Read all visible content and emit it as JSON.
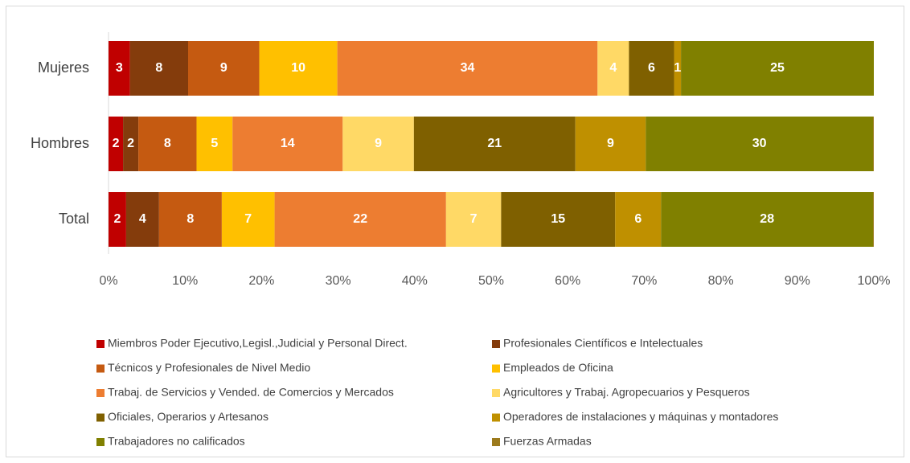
{
  "chart_data": {
    "type": "stacked_bar_horizontal_percent",
    "categories": [
      "Mujeres",
      "Hombres",
      "Total"
    ],
    "xlim": [
      0,
      100
    ],
    "xticks": [
      {
        "value": 0,
        "label": "0%"
      },
      {
        "value": 10,
        "label": "10%"
      },
      {
        "value": 20,
        "label": "20%"
      },
      {
        "value": 30,
        "label": "30%"
      },
      {
        "value": 40,
        "label": "40%"
      },
      {
        "value": 50,
        "label": "50%"
      },
      {
        "value": 60,
        "label": "60%"
      },
      {
        "value": 70,
        "label": "70%"
      },
      {
        "value": 80,
        "label": "80%"
      },
      {
        "value": 90,
        "label": "90%"
      },
      {
        "value": 100,
        "label": "100%"
      }
    ],
    "series": [
      {
        "name": "Miembros Poder Ejecutivo,Legisl.,Judicial y Personal Direct.",
        "color": "#c00000",
        "values": [
          2.8,
          1.9,
          2.3
        ],
        "value_labels": [
          "3",
          "2",
          "2"
        ]
      },
      {
        "name": "Profesionales Científicos e Intelectuales",
        "color": "#843c0c",
        "values": [
          7.6,
          2.0,
          4.3
        ],
        "value_labels": [
          "8",
          "2",
          "4"
        ]
      },
      {
        "name": "Técnicos y Profesionales de Nivel Medio",
        "color": "#c55a11",
        "values": [
          9.3,
          7.6,
          8.2
        ],
        "value_labels": [
          "9",
          "8",
          "8"
        ]
      },
      {
        "name": "Empleados de Oficina",
        "color": "#ffc000",
        "values": [
          10.2,
          4.7,
          6.9
        ],
        "value_labels": [
          "10",
          "5",
          "7"
        ]
      },
      {
        "name": "Trabaj. de Servicios y Vended. de Comercios y Mercados",
        "color": "#ed7d31",
        "values": [
          34.0,
          14.4,
          22.4
        ],
        "value_labels": [
          "34",
          "14",
          "22"
        ]
      },
      {
        "name": "Agricultores y Trabaj. Agropecuarios y Pesqueros",
        "color": "#ffd966",
        "values": [
          4.1,
          9.3,
          7.2
        ],
        "value_labels": [
          "4",
          "9",
          "7"
        ]
      },
      {
        "name": "Oficiales, Operarios y Artesanos",
        "color": "#7f6000",
        "values": [
          5.9,
          21.1,
          14.9
        ],
        "value_labels": [
          "6",
          "21",
          "15"
        ]
      },
      {
        "name": "Operadores de instalaciones y máquinas y montadores",
        "color": "#bf9000",
        "values": [
          0.9,
          9.2,
          6.0
        ],
        "value_labels": [
          "1",
          "9",
          "6"
        ]
      },
      {
        "name": "Trabajadores no calificados",
        "color": "#808000",
        "values": [
          25.2,
          29.7,
          27.7
        ],
        "value_labels": [
          "25",
          "30",
          "28"
        ]
      },
      {
        "name": "Fuerzas Armadas",
        "color": "#9c7a1c",
        "values": [
          0,
          0.1,
          0.1
        ]
      }
    ]
  }
}
